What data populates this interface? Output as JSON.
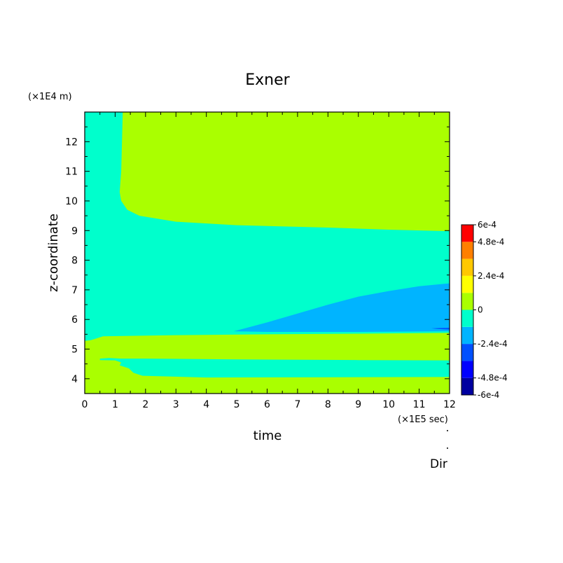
{
  "chart_data": {
    "type": "heatmap",
    "title": "Exner",
    "xlabel": "time",
    "ylabel": "z-coordinate",
    "x_unit_label": "(×1E5 sec)",
    "y_unit_label": "(×1E4 m)",
    "xlim": [
      0,
      12
    ],
    "ylim": [
      3.5,
      13.0
    ],
    "x_ticks": [
      0,
      1,
      2,
      3,
      4,
      5,
      6,
      7,
      8,
      9,
      10,
      11,
      12
    ],
    "x_tick_labels": [
      "0",
      "1",
      "2",
      "3",
      "4",
      "5",
      "6",
      "7",
      "8",
      "9",
      "10",
      "11",
      "12"
    ],
    "y_ticks": [
      4,
      5,
      6,
      7,
      8,
      9,
      10,
      11,
      12
    ],
    "y_tick_labels": [
      "4",
      "5",
      "6",
      "7",
      "8",
      "9",
      "10",
      "11",
      "12"
    ],
    "colorbar": {
      "levels": [
        -0.0006,
        -0.00048,
        -0.00036,
        -0.00024,
        -0.00012,
        0,
        0.00012,
        0.00024,
        0.00036,
        0.00048,
        0.0006
      ],
      "colors": [
        "#0000a0",
        "#0000ff",
        "#0050ff",
        "#00b4ff",
        "#00ffcc",
        "#aaff00",
        "#ffff00",
        "#ffc800",
        "#ff7f00",
        "#ff0000"
      ],
      "tick_labels": [
        {
          "value": 0.0006,
          "label": "6e-4"
        },
        {
          "value": 0.00048,
          "label": "4.8e-4"
        },
        {
          "value": 0.00024,
          "label": "2.4e-4"
        },
        {
          "value": 0,
          "label": "0"
        },
        {
          "value": -0.00024,
          "label": "-2.4e-4"
        },
        {
          "value": -0.00048,
          "label": "-4.8e-4"
        },
        {
          "value": -0.0006,
          "label": "-6e-4"
        }
      ]
    },
    "regions": [
      {
        "name": "background",
        "level": "0 to 1.2e-4",
        "color": "#aaff00",
        "boundary": [
          [
            0,
            3.5
          ],
          [
            12,
            3.5
          ],
          [
            12,
            13.0
          ],
          [
            0,
            13.0
          ]
        ]
      },
      {
        "name": "upper-negative",
        "level": "-1.2e-4 to 0",
        "color": "#00ffcc",
        "boundary": [
          [
            0,
            13.0
          ],
          [
            1.25,
            13.0
          ],
          [
            1.2,
            11.0
          ],
          [
            1.15,
            10.3
          ],
          [
            1.2,
            10.0
          ],
          [
            1.4,
            9.7
          ],
          [
            1.8,
            9.5
          ],
          [
            3,
            9.3
          ],
          [
            5,
            9.18
          ],
          [
            8,
            9.1
          ],
          [
            10,
            9.03
          ],
          [
            12,
            8.98
          ],
          [
            12,
            5.55
          ],
          [
            9,
            5.52
          ],
          [
            6,
            5.5
          ],
          [
            3,
            5.47
          ],
          [
            0.6,
            5.43
          ],
          [
            0.35,
            5.35
          ],
          [
            0.2,
            5.3
          ],
          [
            0,
            5.28
          ]
        ]
      },
      {
        "name": "lower-negative-band",
        "level": "-1.2e-4 to 0",
        "color": "#00ffcc",
        "boundary": [
          [
            0.5,
            4.63
          ],
          [
            1.0,
            4.62
          ],
          [
            1.2,
            4.55
          ],
          [
            1.15,
            4.45
          ],
          [
            1.45,
            4.35
          ],
          [
            1.6,
            4.2
          ],
          [
            1.9,
            4.1
          ],
          [
            4,
            4.04
          ],
          [
            8,
            4.05
          ],
          [
            12,
            4.06
          ],
          [
            12,
            4.62
          ],
          [
            9,
            4.63
          ],
          [
            5,
            4.65
          ],
          [
            2,
            4.68
          ],
          [
            1.2,
            4.68
          ],
          [
            0.8,
            4.7
          ],
          [
            0.5,
            4.68
          ]
        ]
      },
      {
        "name": "negative-wedge",
        "level": "-2.4e-4 to -1.2e-4",
        "color": "#00b4ff",
        "boundary": [
          [
            4.9,
            5.6
          ],
          [
            6,
            5.9
          ],
          [
            7,
            6.2
          ],
          [
            8,
            6.5
          ],
          [
            9,
            6.77
          ],
          [
            10,
            6.96
          ],
          [
            11,
            7.12
          ],
          [
            12,
            7.22
          ],
          [
            12,
            5.6
          ],
          [
            9,
            5.58
          ],
          [
            6,
            5.58
          ]
        ]
      },
      {
        "name": "wedge-tip-sliver",
        "level": "-3.6e-4 to -2.4e-4",
        "color": "#0050ff",
        "boundary": [
          [
            11.4,
            5.7
          ],
          [
            12,
            5.72
          ],
          [
            12,
            5.66
          ],
          [
            11.6,
            5.68
          ]
        ]
      }
    ],
    "grid": false,
    "colorbar_placement": "right",
    "footer_label": "Dir"
  }
}
